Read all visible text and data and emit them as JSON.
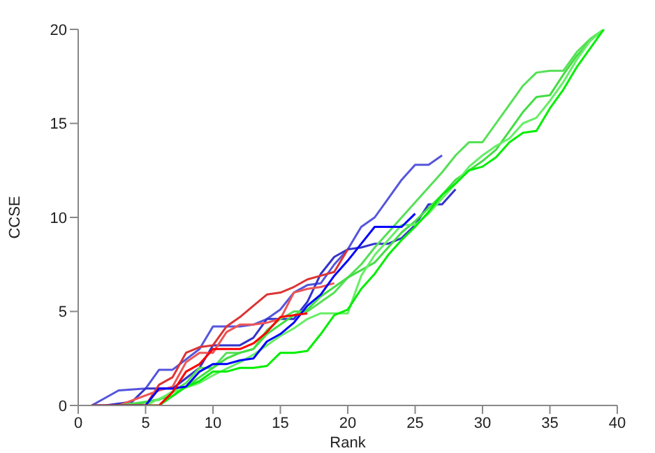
{
  "chart_data": {
    "type": "line",
    "xlabel": "Rank",
    "ylabel": "CCSE",
    "xlim": [
      0,
      40
    ],
    "xticks": [
      0,
      5,
      10,
      15,
      20,
      25,
      30,
      35,
      40
    ],
    "ylim": [
      0,
      20
    ],
    "yticks": [
      0,
      5,
      10,
      15,
      20
    ],
    "grid": false,
    "marker": "none",
    "line_style": "solid",
    "series": [
      {
        "color": "#5555dd",
        "x": [
          1,
          3,
          5,
          6,
          7,
          9,
          10,
          11,
          12,
          13,
          14,
          15,
          16,
          17,
          18,
          19,
          20,
          21,
          22,
          23,
          24,
          25,
          26,
          27
        ],
        "values": [
          0,
          0.8,
          0.9,
          1.9,
          1.9,
          3,
          4.2,
          4.2,
          4.2,
          4.3,
          4.6,
          5.1,
          6,
          6.4,
          6.5,
          7.5,
          8.3,
          9.5,
          10,
          11,
          12,
          12.8,
          12.8,
          13.3
        ]
      },
      {
        "color": "#3333cc",
        "x": [
          2,
          4,
          5,
          7,
          9,
          10,
          11,
          12,
          13,
          14,
          15,
          16,
          17,
          18,
          19,
          20,
          21,
          22,
          23,
          24,
          25,
          26,
          27,
          28
        ],
        "values": [
          0,
          0.2,
          0.9,
          0.9,
          2,
          3.2,
          3.2,
          3.2,
          3.6,
          4.6,
          4.6,
          4.6,
          5.5,
          7,
          7.9,
          8.3,
          8.4,
          8.6,
          8.6,
          8.9,
          9.6,
          10.7,
          10.7,
          11.5
        ]
      },
      {
        "color": "#dd3333",
        "x": [
          2,
          5,
          6,
          7,
          8,
          9,
          10,
          11,
          12,
          13,
          14,
          15,
          16,
          17,
          18,
          19,
          20
        ],
        "values": [
          0,
          0,
          1.1,
          1.5,
          2.8,
          3.1,
          3.2,
          4.2,
          4.7,
          5.3,
          5.9,
          6,
          6.3,
          6.7,
          6.9,
          7.1,
          8.3
        ]
      },
      {
        "color": "#ee5555",
        "x": [
          3,
          6,
          7,
          8,
          9,
          10,
          11,
          12,
          13,
          14,
          15,
          16,
          17,
          18,
          19
        ],
        "values": [
          0,
          0.8,
          1,
          2.3,
          2.8,
          2.8,
          3.9,
          4.3,
          4.3,
          4.4,
          4.6,
          6,
          6.2,
          6.3,
          6.5
        ]
      },
      {
        "color": "#55e055",
        "x": [
          3,
          6,
          8,
          9,
          10,
          11,
          12,
          13,
          14,
          15,
          16,
          17,
          18,
          19,
          20,
          21,
          22,
          23,
          24,
          25,
          26,
          27,
          28,
          29,
          30,
          31,
          32,
          33,
          34,
          35,
          36,
          37,
          38,
          39
        ],
        "values": [
          0,
          0.3,
          1.2,
          2,
          2,
          2.8,
          2.8,
          3,
          4,
          4.6,
          5,
          5,
          5.5,
          6,
          6.8,
          7.5,
          8.4,
          9.2,
          10,
          10.8,
          11.6,
          12.4,
          13.3,
          14,
          14,
          15,
          16,
          17,
          17.7,
          17.8,
          17.8,
          18.8,
          19.5,
          20
        ]
      },
      {
        "color": "#44dd44",
        "x": [
          4,
          7,
          8,
          9,
          10,
          11,
          12,
          13,
          14,
          15,
          16,
          17,
          18,
          19,
          20,
          21,
          22,
          23,
          24,
          25,
          26,
          27,
          28,
          29,
          30,
          31,
          32,
          33,
          34,
          35,
          36,
          37,
          38,
          39
        ],
        "values": [
          0,
          0.5,
          1,
          1.5,
          2,
          2.5,
          2.8,
          3,
          3.8,
          4.3,
          4.8,
          5.1,
          5.8,
          6.3,
          6.8,
          7.2,
          7.6,
          8.4,
          9.2,
          9.8,
          10.5,
          11.2,
          12,
          12.5,
          13,
          13.6,
          14.6,
          15.6,
          16.4,
          16.5,
          17.6,
          18.6,
          19.4,
          20
        ]
      },
      {
        "color": "#66ee66",
        "x": [
          5,
          7,
          9,
          10,
          12,
          13,
          14,
          15,
          16,
          17,
          18,
          19,
          20,
          21,
          22,
          23,
          24,
          25,
          26,
          27,
          28,
          29,
          30,
          31,
          32,
          33,
          34,
          35,
          36,
          37,
          38,
          39
        ],
        "values": [
          0,
          0.7,
          1.2,
          1.6,
          2.3,
          2.7,
          3.2,
          3.7,
          4.1,
          4.6,
          4.9,
          4.9,
          4.9,
          6.9,
          8,
          8.8,
          9.6,
          9.6,
          10.2,
          11,
          11.8,
          12.7,
          13.3,
          13.8,
          14.2,
          15,
          15.3,
          16.2,
          17.2,
          18.4,
          19.4,
          20
        ]
      },
      {
        "color": "#00ee00",
        "x": [
          1,
          6,
          7,
          8,
          9,
          10,
          11,
          12,
          13,
          14,
          15,
          16,
          17,
          18,
          19,
          20,
          21,
          22,
          23,
          24,
          25,
          26,
          27,
          28,
          29,
          30,
          31,
          32,
          33,
          34,
          35,
          36,
          37,
          38,
          39
        ],
        "values": [
          0,
          0,
          0.5,
          1,
          1.3,
          1.8,
          1.8,
          2,
          2,
          2.1,
          2.8,
          2.8,
          2.9,
          3.8,
          4.8,
          5.1,
          6.2,
          7,
          8,
          8.8,
          9.5,
          10.3,
          11.2,
          11.8,
          12.5,
          12.7,
          13.2,
          14,
          14.5,
          14.6,
          15.8,
          16.8,
          18,
          19,
          20
        ]
      },
      {
        "color": "#0000ff",
        "x": [
          1,
          5,
          6,
          7,
          8,
          9,
          10,
          11,
          12,
          13,
          14,
          15,
          16,
          17,
          18,
          19,
          20,
          21,
          22,
          23,
          24,
          25
        ],
        "values": [
          0,
          0,
          0.9,
          0.9,
          1,
          1.8,
          2.2,
          2.2,
          2.4,
          2.5,
          3.4,
          3.8,
          4.4,
          5.3,
          5.9,
          6.9,
          7.7,
          8.6,
          9.5,
          9.5,
          9.5,
          10.2
        ]
      },
      {
        "color": "#ff0000",
        "x": [
          1,
          6,
          7,
          8,
          9,
          10,
          11,
          12,
          13,
          14,
          15,
          16,
          17
        ],
        "values": [
          0,
          0,
          0.7,
          1.8,
          2.2,
          3,
          3,
          3,
          3.3,
          3.9,
          4.7,
          4.8,
          4.9
        ]
      }
    ]
  }
}
